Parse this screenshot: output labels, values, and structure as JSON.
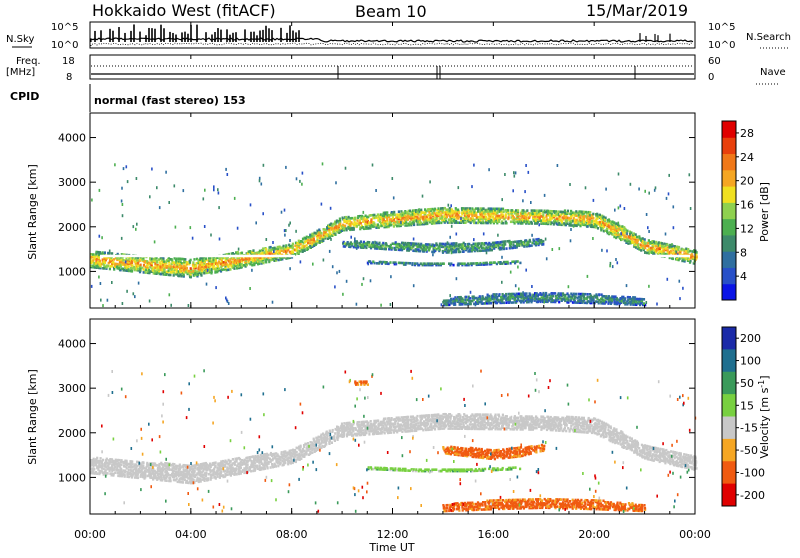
{
  "header": {
    "station": "Hokkaido West (fitACF)",
    "beam": "Beam 10",
    "date": "15/Mar/2019"
  },
  "top_panel": {
    "nsky_label": "N.Sky",
    "nsearch_label": "N.Search",
    "freq_label_line1": "Freq.",
    "freq_label_line2": "[MHz]",
    "nave_label": "Nave",
    "cpid_label": "CPID",
    "cpid_text": "normal (fast stereo) 153",
    "noise_left_ticks": [
      "10^5",
      "10^0"
    ],
    "noise_right_ticks": [
      "10^5",
      "10^0"
    ],
    "freq_left_ticks": [
      "18",
      "8"
    ],
    "nave_right_ticks": [
      "60",
      "0"
    ]
  },
  "x_axis": {
    "label": "Time UT",
    "ticks": [
      "00:00",
      "04:00",
      "08:00",
      "12:00",
      "16:00",
      "20:00",
      "00:00"
    ]
  },
  "colors": {
    "power_scale": [
      "#0a14e6",
      "#2850c8",
      "#2f6fa0",
      "#3d8a6a",
      "#4caf50",
      "#8fd14f",
      "#f0e020",
      "#f5a623",
      "#f07818",
      "#e8400c",
      "#e00000"
    ],
    "velocity_scale": [
      "#e00000",
      "#f05a10",
      "#f5a623",
      "#c8c8c8",
      "#78d040",
      "#3a9a5a",
      "#1f6f8f",
      "#1a2aa8"
    ],
    "ground_scatter": "#bdbdbd"
  },
  "chart_data": [
    {
      "type": "heatmap",
      "title": "",
      "ylabel": "Slant Range [km]",
      "xlabel": "",
      "x_range_hours": [
        0,
        24
      ],
      "ylim": [
        180,
        4550
      ],
      "yticks": [
        1000,
        2000,
        3000,
        4000
      ],
      "colorbar": {
        "label": "Power [dB]",
        "ticks": [
          "4",
          "8",
          "12",
          "16",
          "20",
          "24",
          "28"
        ],
        "range": [
          0,
          30
        ]
      },
      "bands": [
        {
          "t": [
            0,
            4,
            8,
            10,
            14,
            18,
            20,
            22,
            24
          ],
          "center": [
            1300,
            1100,
            1500,
            2100,
            2300,
            2250,
            2200,
            1600,
            1350
          ],
          "width": [
            350,
            400,
            300,
            300,
            350,
            300,
            350,
            300,
            300
          ],
          "power": 18
        },
        {
          "t": [
            10,
            12,
            14,
            16,
            18
          ],
          "center": [
            1650,
            1600,
            1550,
            1600,
            1700
          ],
          "width": [
            120,
            160,
            200,
            180,
            120
          ],
          "power": 10
        },
        {
          "t": [
            11,
            13,
            15,
            17
          ],
          "center": [
            1250,
            1200,
            1200,
            1250
          ],
          "width": [
            60,
            60,
            60,
            60
          ],
          "power": 8
        },
        {
          "t": [
            14,
            16,
            18,
            20,
            22
          ],
          "center": [
            350,
            420,
            450,
            420,
            350
          ],
          "width": [
            150,
            200,
            200,
            200,
            150
          ],
          "power": 8
        }
      ]
    },
    {
      "type": "heatmap",
      "title": "",
      "ylabel": "Slant Range [km]",
      "xlabel": "Time UT",
      "x_range_hours": [
        0,
        24
      ],
      "ylim": [
        180,
        4550
      ],
      "yticks": [
        1000,
        2000,
        3000,
        4000
      ],
      "colorbar": {
        "label": "Velocity [m s^-1]",
        "ticks": [
          "200",
          "100",
          "50",
          "15",
          "-15",
          "-50",
          "-100",
          "-200"
        ],
        "range": [
          -250,
          250
        ]
      },
      "bands": [
        {
          "t": [
            0,
            4,
            8,
            10,
            14,
            18,
            20,
            22,
            24
          ],
          "center": [
            1300,
            1100,
            1500,
            2100,
            2300,
            2250,
            2200,
            1600,
            1350
          ],
          "width": [
            350,
            400,
            300,
            300,
            350,
            300,
            350,
            300,
            300
          ],
          "velocity": 0
        },
        {
          "t": [
            14,
            15,
            16,
            17,
            18
          ],
          "center": [
            1650,
            1600,
            1550,
            1600,
            1700
          ],
          "width": [
            150,
            200,
            220,
            200,
            120
          ],
          "velocity": -60
        },
        {
          "t": [
            11,
            13,
            15,
            17
          ],
          "center": [
            1250,
            1200,
            1200,
            1250
          ],
          "width": [
            60,
            60,
            60,
            60
          ],
          "velocity": 40
        },
        {
          "t": [
            14,
            16,
            18,
            20,
            22
          ],
          "center": [
            350,
            420,
            450,
            420,
            350
          ],
          "width": [
            150,
            200,
            200,
            200,
            150
          ],
          "velocity": -60
        },
        {
          "t": [
            10.5,
            11
          ],
          "center": [
            3150,
            3150
          ],
          "width": [
            80,
            80
          ],
          "velocity": -60
        }
      ]
    }
  ]
}
